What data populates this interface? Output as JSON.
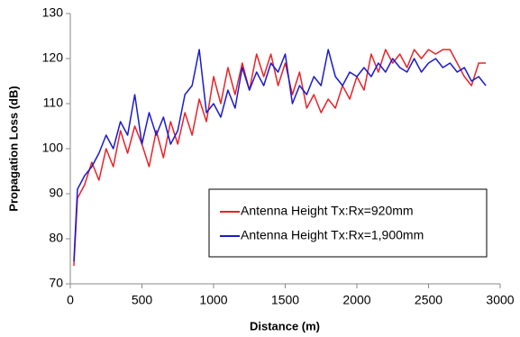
{
  "chart_data": {
    "type": "line",
    "xlabel": "Distance (m)",
    "ylabel": "Propagation Loss (dB)",
    "x": [
      25,
      50,
      100,
      150,
      200,
      250,
      300,
      350,
      400,
      450,
      500,
      550,
      600,
      650,
      700,
      750,
      800,
      850,
      900,
      950,
      1000,
      1050,
      1100,
      1150,
      1200,
      1250,
      1300,
      1350,
      1400,
      1450,
      1500,
      1550,
      1600,
      1650,
      1700,
      1750,
      1800,
      1850,
      1900,
      1950,
      2000,
      2050,
      2100,
      2150,
      2200,
      2250,
      2300,
      2350,
      2400,
      2450,
      2500,
      2550,
      2600,
      2650,
      2700,
      2750,
      2800,
      2850,
      2900
    ],
    "series": [
      {
        "name": "Antenna Height Tx:Rx=920mm",
        "color": "#e8232a",
        "values": [
          74,
          89,
          92,
          97,
          93,
          100,
          96,
          104,
          99,
          105,
          101,
          96,
          104,
          98,
          106,
          101,
          108,
          103,
          111,
          106,
          116,
          110,
          118,
          112,
          119,
          113,
          121,
          116,
          121,
          114,
          119,
          112,
          117,
          109,
          112,
          108,
          111,
          109,
          114,
          111,
          116,
          113,
          121,
          117,
          122,
          119,
          121,
          118,
          122,
          120,
          122,
          121,
          122,
          122,
          119,
          116,
          114,
          119,
          119
        ]
      },
      {
        "name": "Antenna Height Tx:Rx=1,900mm",
        "color": "#1a1ad0",
        "values": [
          75,
          91,
          94,
          96,
          99,
          103,
          100,
          106,
          103,
          112,
          101,
          108,
          103,
          107,
          101,
          104,
          112,
          114,
          122,
          108,
          110,
          107,
          113,
          109,
          118,
          113,
          117,
          114,
          119,
          117,
          121,
          110,
          114,
          112,
          116,
          114,
          122,
          116,
          114,
          117,
          116,
          118,
          116,
          119,
          117,
          120,
          118,
          117,
          120,
          117,
          119,
          120,
          118,
          119,
          117,
          118,
          115,
          116,
          114
        ]
      }
    ],
    "xlim": [
      0,
      3000
    ],
    "xticks": [
      0,
      500,
      1000,
      1500,
      2000,
      2500,
      3000
    ],
    "ylim": [
      70,
      130
    ],
    "yticks": [
      70,
      80,
      90,
      100,
      110,
      120,
      130
    ],
    "grid": false,
    "legend": "lower right"
  }
}
